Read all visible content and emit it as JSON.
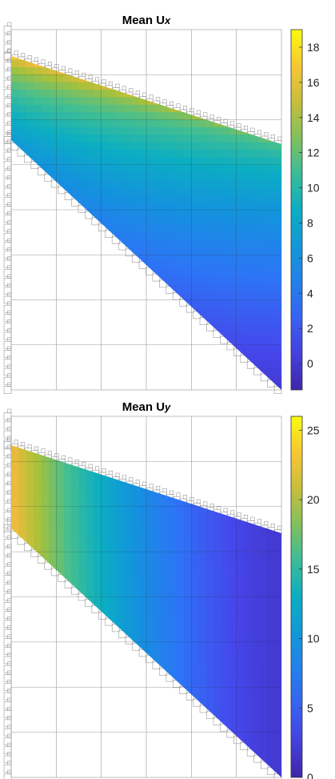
{
  "chart_data": [
    {
      "type": "heatmap",
      "title": "Mean U",
      "title_subscript": "x",
      "colormap": "parula",
      "colorbar_ticks": [
        0,
        2,
        4,
        6,
        8,
        10,
        12,
        14,
        16,
        18
      ],
      "clim": [
        -1.5,
        19
      ],
      "field": {
        "top_left_value": 17,
        "top_right_value": 12,
        "lower_left_value": 7,
        "bottom_right_value": 0
      },
      "grid": true
    },
    {
      "type": "heatmap",
      "title": "Mean U",
      "title_subscript": "y",
      "colormap": "parula",
      "colorbar_ticks": [
        0,
        5,
        10,
        15,
        20,
        25
      ],
      "clim": [
        0,
        26
      ],
      "field": {
        "left_value": 23,
        "right_value": 2
      },
      "grid": true
    }
  ]
}
